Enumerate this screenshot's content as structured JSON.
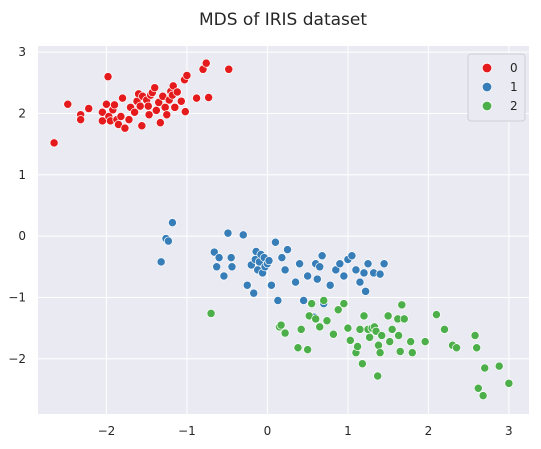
{
  "chart_data": {
    "type": "scatter",
    "title": "MDS of IRIS dataset",
    "xlabel": "",
    "ylabel": "",
    "xlim": [
      -2.85,
      3.25
    ],
    "ylim": [
      -2.9,
      3.1
    ],
    "xticks": [
      -2,
      -1,
      0,
      1,
      2,
      3
    ],
    "yticks": [
      -2,
      -1,
      0,
      1,
      2,
      3
    ],
    "xtick_labels": [
      "−2",
      "−1",
      "0",
      "1",
      "2",
      "3"
    ],
    "ytick_labels": [
      "−2",
      "−1",
      "0",
      "1",
      "2",
      "3"
    ],
    "grid": true,
    "legend_position": "top-right",
    "background": "#eaeaf2",
    "series": [
      {
        "name": "0",
        "color": "#e41a1c",
        "points": [
          [
            -2.65,
            1.52
          ],
          [
            -2.48,
            2.15
          ],
          [
            -2.32,
            1.98
          ],
          [
            -2.32,
            1.9
          ],
          [
            -2.22,
            2.08
          ],
          [
            -2.05,
            1.88
          ],
          [
            -2.05,
            2.02
          ],
          [
            -2.0,
            2.15
          ],
          [
            -1.98,
            2.6
          ],
          [
            -1.97,
            1.95
          ],
          [
            -1.95,
            1.88
          ],
          [
            -1.92,
            2.06
          ],
          [
            -1.9,
            2.14
          ],
          [
            -1.87,
            1.9
          ],
          [
            -1.85,
            1.82
          ],
          [
            -1.82,
            1.95
          ],
          [
            -1.8,
            2.25
          ],
          [
            -1.77,
            1.76
          ],
          [
            -1.72,
            1.9
          ],
          [
            -1.7,
            2.1
          ],
          [
            -1.65,
            2.02
          ],
          [
            -1.62,
            2.2
          ],
          [
            -1.6,
            2.32
          ],
          [
            -1.58,
            2.12
          ],
          [
            -1.56,
            1.8
          ],
          [
            -1.55,
            2.28
          ],
          [
            -1.5,
            2.22
          ],
          [
            -1.48,
            2.12
          ],
          [
            -1.47,
            1.98
          ],
          [
            -1.45,
            2.3
          ],
          [
            -1.43,
            2.34
          ],
          [
            -1.4,
            2.42
          ],
          [
            -1.38,
            2.05
          ],
          [
            -1.35,
            2.18
          ],
          [
            -1.33,
            1.85
          ],
          [
            -1.3,
            2.28
          ],
          [
            -1.27,
            2.1
          ],
          [
            -1.25,
            1.98
          ],
          [
            -1.22,
            2.22
          ],
          [
            -1.2,
            2.36
          ],
          [
            -1.18,
            2.3
          ],
          [
            -1.17,
            2.45
          ],
          [
            -1.15,
            2.1
          ],
          [
            -1.12,
            2.35
          ],
          [
            -1.07,
            2.2
          ],
          [
            -1.03,
            2.55
          ],
          [
            -1.02,
            2.03
          ],
          [
            -1.0,
            2.62
          ],
          [
            -0.88,
            2.25
          ],
          [
            -0.8,
            2.72
          ],
          [
            -0.76,
            2.82
          ],
          [
            -0.73,
            2.26
          ],
          [
            -0.48,
            2.72
          ]
        ]
      },
      {
        "name": "1",
        "color": "#377eb8",
        "points": [
          [
            -1.32,
            -0.42
          ],
          [
            -1.26,
            -0.04
          ],
          [
            -1.23,
            -0.08
          ],
          [
            -1.18,
            0.22
          ],
          [
            -0.66,
            -0.26
          ],
          [
            -0.63,
            -0.5
          ],
          [
            -0.6,
            -0.35
          ],
          [
            -0.54,
            -0.65
          ],
          [
            -0.49,
            0.05
          ],
          [
            -0.45,
            -0.35
          ],
          [
            -0.44,
            -0.5
          ],
          [
            -0.3,
            0.02
          ],
          [
            -0.25,
            -0.8
          ],
          [
            -0.2,
            -0.47
          ],
          [
            -0.17,
            -0.93
          ],
          [
            -0.15,
            -0.38
          ],
          [
            -0.14,
            -0.25
          ],
          [
            -0.12,
            -0.55
          ],
          [
            -0.1,
            -0.42
          ],
          [
            -0.08,
            -0.3
          ],
          [
            -0.06,
            -0.6
          ],
          [
            -0.04,
            -0.35
          ],
          [
            -0.03,
            -0.5
          ],
          [
            0.0,
            -0.45
          ],
          [
            0.02,
            -0.4
          ],
          [
            0.05,
            -0.8
          ],
          [
            0.1,
            -0.1
          ],
          [
            0.13,
            -1.05
          ],
          [
            0.18,
            -0.35
          ],
          [
            0.22,
            -0.55
          ],
          [
            0.25,
            -0.22
          ],
          [
            0.35,
            -0.75
          ],
          [
            0.4,
            -0.45
          ],
          [
            0.45,
            -1.05
          ],
          [
            0.5,
            -0.65
          ],
          [
            0.55,
            -1.1
          ],
          [
            0.58,
            -1.32
          ],
          [
            0.6,
            -0.45
          ],
          [
            0.62,
            -0.7
          ],
          [
            0.65,
            -0.5
          ],
          [
            0.68,
            -0.32
          ],
          [
            0.7,
            -1.1
          ],
          [
            0.78,
            -0.8
          ],
          [
            0.85,
            -0.55
          ],
          [
            0.9,
            -0.45
          ],
          [
            0.95,
            -0.65
          ],
          [
            1.0,
            -0.38
          ],
          [
            1.05,
            -0.32
          ],
          [
            1.1,
            -0.55
          ],
          [
            1.15,
            -0.75
          ],
          [
            1.2,
            -0.6
          ],
          [
            1.22,
            -0.9
          ],
          [
            1.25,
            -0.45
          ],
          [
            1.32,
            -0.6
          ],
          [
            1.4,
            -0.62
          ],
          [
            1.45,
            -0.45
          ]
        ]
      },
      {
        "name": "2",
        "color": "#4daf4a",
        "points": [
          [
            -0.7,
            -1.26
          ],
          [
            0.15,
            -1.48
          ],
          [
            0.17,
            -1.45
          ],
          [
            0.22,
            -1.58
          ],
          [
            0.38,
            -1.82
          ],
          [
            0.42,
            -1.52
          ],
          [
            0.5,
            -1.85
          ],
          [
            0.52,
            -1.3
          ],
          [
            0.55,
            -1.1
          ],
          [
            0.6,
            -1.35
          ],
          [
            0.65,
            -1.48
          ],
          [
            0.7,
            -1.05
          ],
          [
            0.74,
            -1.38
          ],
          [
            0.82,
            -1.6
          ],
          [
            0.88,
            -1.2
          ],
          [
            0.95,
            -1.1
          ],
          [
            1.0,
            -1.5
          ],
          [
            1.03,
            -1.7
          ],
          [
            1.1,
            -1.9
          ],
          [
            1.12,
            -1.8
          ],
          [
            1.15,
            -1.52
          ],
          [
            1.18,
            -2.08
          ],
          [
            1.2,
            -1.3
          ],
          [
            1.25,
            -1.52
          ],
          [
            1.27,
            -1.65
          ],
          [
            1.3,
            -1.5
          ],
          [
            1.33,
            -1.48
          ],
          [
            1.35,
            -1.55
          ],
          [
            1.37,
            -2.28
          ],
          [
            1.38,
            -1.78
          ],
          [
            1.4,
            -1.9
          ],
          [
            1.42,
            -1.62
          ],
          [
            1.5,
            -1.3
          ],
          [
            1.52,
            -1.72
          ],
          [
            1.55,
            -1.52
          ],
          [
            1.62,
            -1.35
          ],
          [
            1.63,
            -1.62
          ],
          [
            1.65,
            -1.88
          ],
          [
            1.67,
            -1.12
          ],
          [
            1.7,
            -1.35
          ],
          [
            1.78,
            -1.72
          ],
          [
            1.8,
            -1.9
          ],
          [
            1.96,
            -1.72
          ],
          [
            2.1,
            -1.28
          ],
          [
            2.2,
            -1.52
          ],
          [
            2.3,
            -1.78
          ],
          [
            2.35,
            -1.82
          ],
          [
            2.58,
            -1.62
          ],
          [
            2.6,
            -1.82
          ],
          [
            2.62,
            -2.48
          ],
          [
            2.7,
            -2.15
          ],
          [
            2.88,
            -2.12
          ],
          [
            2.68,
            -2.6
          ],
          [
            3.0,
            -2.4
          ]
        ]
      }
    ]
  }
}
